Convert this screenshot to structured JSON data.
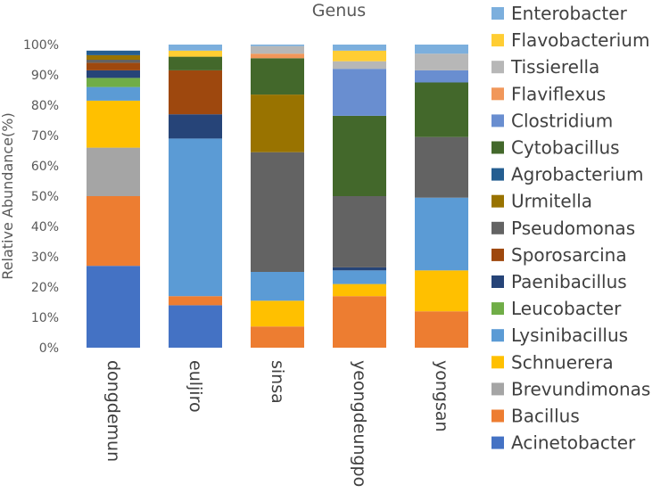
{
  "chart_data": {
    "type": "bar",
    "stacked": true,
    "title": "Genus",
    "xlabel": "",
    "ylabel": "Relative  Abundance(%)",
    "ylim": [
      0,
      100
    ],
    "y_ticks": [
      "0%",
      "10%",
      "20%",
      "30%",
      "40%",
      "50%",
      "60%",
      "70%",
      "80%",
      "90%",
      "100%"
    ],
    "grid": false,
    "legend_position": "right",
    "categories": [
      "dongdemun",
      "euljiro",
      "sinsa",
      "yeongdeungpo",
      "yongsan"
    ],
    "series": [
      {
        "name": "Acinetobacter",
        "color": "#4472C4",
        "values": [
          27.0,
          14.0,
          0.0,
          0.0,
          0.0
        ]
      },
      {
        "name": "Bacillus",
        "color": "#ED7D31",
        "values": [
          23.0,
          3.0,
          7.0,
          17.0,
          12.0
        ]
      },
      {
        "name": "Brevundimonas",
        "color": "#A5A5A5",
        "values": [
          16.0,
          0.0,
          0.0,
          0.0,
          0.0
        ]
      },
      {
        "name": "Schnuerera",
        "color": "#FFC000",
        "values": [
          15.5,
          0.0,
          8.5,
          4.0,
          13.5
        ]
      },
      {
        "name": "Lysinibacillus",
        "color": "#5B9BD5",
        "values": [
          4.5,
          52.0,
          9.5,
          4.5,
          24.0
        ]
      },
      {
        "name": "Leucobacter",
        "color": "#70AD47",
        "values": [
          3.0,
          0.0,
          0.0,
          0.0,
          0.0
        ]
      },
      {
        "name": "Paenibacillus",
        "color": "#264478",
        "values": [
          2.5,
          8.0,
          0.0,
          1.0,
          0.0
        ]
      },
      {
        "name": "Sporosarcina",
        "color": "#9E480E",
        "values": [
          2.5,
          14.5,
          0.0,
          0.0,
          0.0
        ]
      },
      {
        "name": "Pseudomonas",
        "color": "#636363",
        "values": [
          1.0,
          0.0,
          39.5,
          23.5,
          20.0
        ]
      },
      {
        "name": "Urmitella",
        "color": "#997300",
        "values": [
          1.5,
          0.0,
          19.0,
          0.0,
          0.0
        ]
      },
      {
        "name": "Agrobacterium",
        "color": "#255E91",
        "values": [
          1.5,
          0.0,
          0.0,
          0.0,
          0.0
        ]
      },
      {
        "name": "Cytobacillus",
        "color": "#43682B",
        "values": [
          0.0,
          4.5,
          12.0,
          26.5,
          18.0
        ]
      },
      {
        "name": "Clostridium",
        "color": "#698ED0",
        "values": [
          0.0,
          0.0,
          0.0,
          15.5,
          4.0
        ]
      },
      {
        "name": "Flaviflexus",
        "color": "#F1975A",
        "values": [
          0.0,
          0.0,
          1.5,
          0.0,
          0.0
        ]
      },
      {
        "name": "Tissierella",
        "color": "#B7B7B7",
        "values": [
          0.0,
          0.0,
          2.5,
          2.5,
          5.5
        ]
      },
      {
        "name": "Flavobacterium",
        "color": "#FFCD33",
        "values": [
          0.0,
          2.0,
          0.0,
          3.5,
          0.0
        ]
      },
      {
        "name": "Enterobacter",
        "color": "#7CAFDD",
        "values": [
          0.0,
          2.0,
          0.5,
          2.0,
          3.0
        ]
      }
    ],
    "legend_order": [
      "Enterobacter",
      "Flavobacterium",
      "Tissierella",
      "Flaviflexus",
      "Clostridium",
      "Cytobacillus",
      "Agrobacterium",
      "Urmitella",
      "Pseudomonas",
      "Sporosarcina",
      "Paenibacillus",
      "Leucobacter",
      "Lysinibacillus",
      "Schnuerera",
      "Brevundimonas",
      "Bacillus",
      "Acinetobacter"
    ]
  }
}
